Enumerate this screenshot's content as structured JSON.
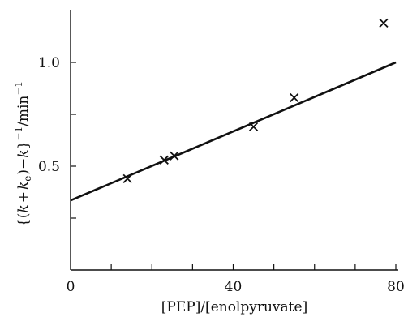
{
  "chart_data": {
    "type": "scatter",
    "xlabel": "[PEP]/[enolpyruvate]",
    "ylabel": "{(k+ke)−k}−1/min−1",
    "ylabel_parts": {
      "open": "{(",
      "k1": "k",
      "plus": "+",
      "k2": "k",
      "k2_sub": "e",
      "mid": ")−",
      "k3": "k",
      "close": "}",
      "exp1": "−1",
      "unit": "/min",
      "exp2": "−1"
    },
    "xlim": [
      0,
      80
    ],
    "ylim": [
      0,
      1.25
    ],
    "x_ticks": [
      0,
      10,
      20,
      30,
      40,
      50,
      60,
      70,
      80
    ],
    "x_tick_labels": [
      {
        "value": 0,
        "label": "0"
      },
      {
        "value": 40,
        "label": "40"
      },
      {
        "value": 80,
        "label": "80"
      }
    ],
    "y_ticks": [
      0.25,
      0.5,
      0.75,
      1.0
    ],
    "y_tick_labels": [
      {
        "value": 0.5,
        "label": "0.5"
      },
      {
        "value": 1.0,
        "label": "1.0"
      }
    ],
    "grid": false,
    "marker": "x",
    "points": [
      {
        "x": 14,
        "y": 0.44
      },
      {
        "x": 23,
        "y": 0.53
      },
      {
        "x": 25.5,
        "y": 0.55
      },
      {
        "x": 45,
        "y": 0.69
      },
      {
        "x": 55,
        "y": 0.83
      },
      {
        "x": 77,
        "y": 1.19
      }
    ],
    "fit_line": {
      "x": [
        0,
        80
      ],
      "y": [
        0.335,
        1.0
      ]
    }
  }
}
